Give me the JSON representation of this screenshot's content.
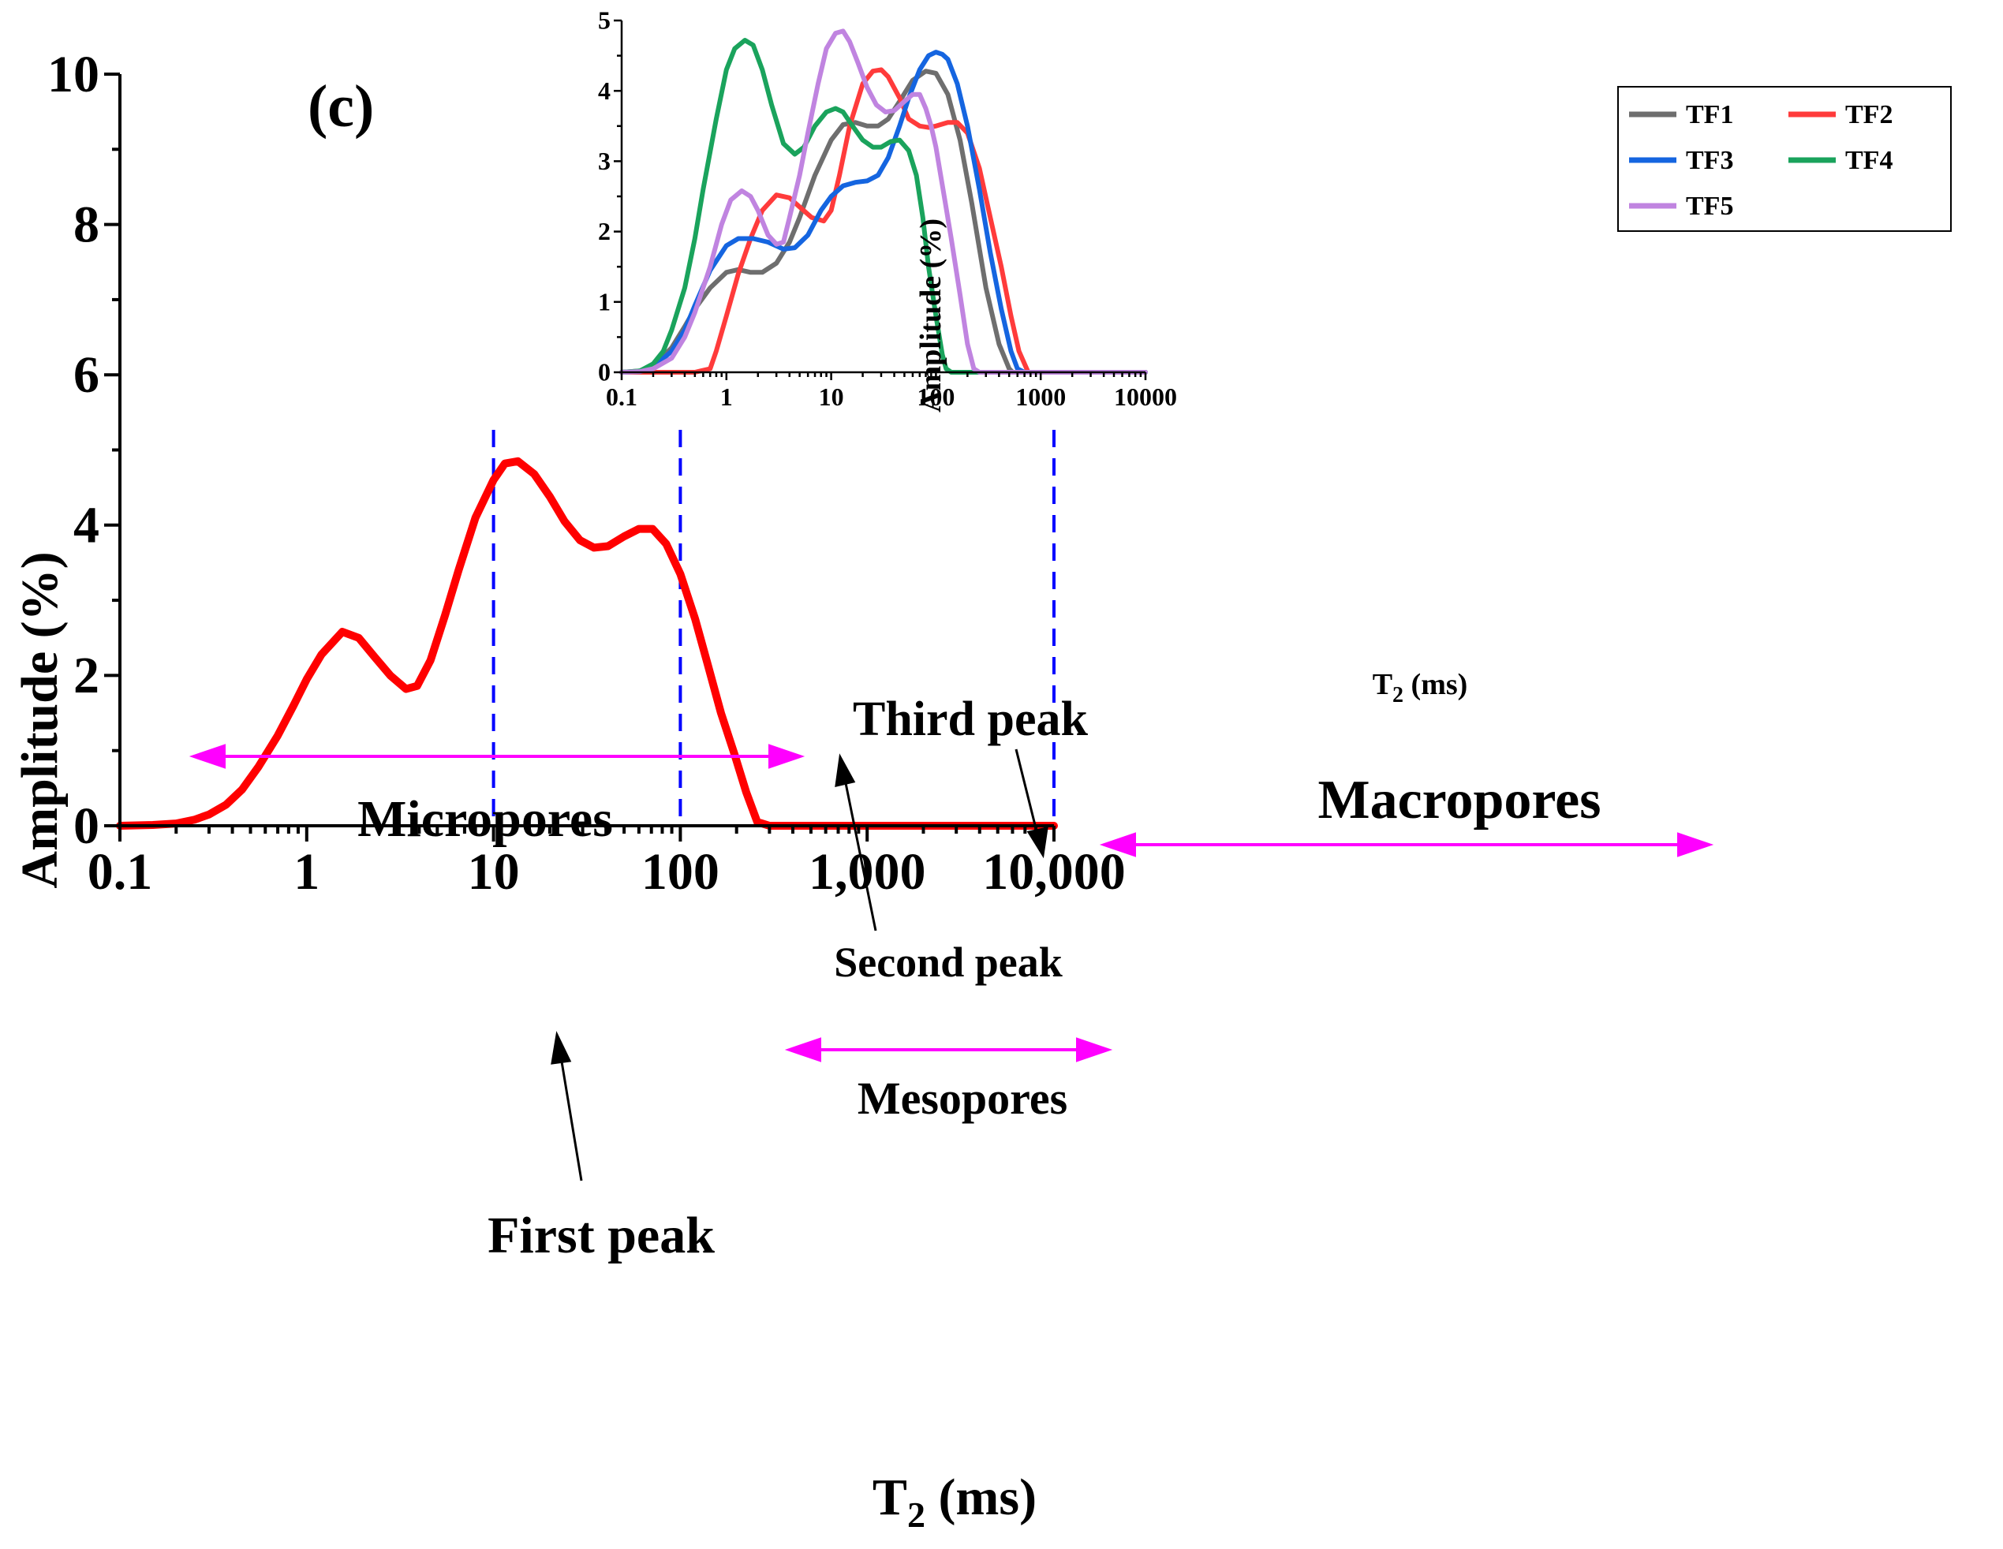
{
  "chart_data": [
    {
      "type": "line",
      "panel_label": "(c)",
      "xscale": "log",
      "xlim": [
        0.1,
        10000
      ],
      "ylim": [
        0,
        10
      ],
      "xlabel_main": "T",
      "xlabel_sub": "2",
      "xlabel_unit": " (ms)",
      "ylabel": "Amplitude (%)",
      "xticks": [
        0.1,
        1,
        10,
        100,
        1000,
        10000
      ],
      "xtick_labels": [
        "0.1",
        "1",
        "10",
        "100",
        "1,000",
        "10,000"
      ],
      "yticks": [
        0,
        2,
        4,
        6,
        8,
        10
      ],
      "ytick_labels": [
        "0",
        "2",
        "4",
        "6",
        "8",
        "10"
      ],
      "series": [
        {
          "name": "TF5",
          "color": "#ff0000",
          "x": [
            0.1,
            0.15,
            0.2,
            0.25,
            0.3,
            0.37,
            0.45,
            0.55,
            0.7,
            0.85,
            1.0,
            1.2,
            1.55,
            1.9,
            2.3,
            2.8,
            3.4,
            3.9,
            4.6,
            5.5,
            6.5,
            8.0,
            10.0,
            11.5,
            13.5,
            16.5,
            20.0,
            24.0,
            29.0,
            34.5,
            41.0,
            50.0,
            60.0,
            71.0,
            84.0,
            100.0,
            120.0,
            140.0,
            165.0,
            195.0,
            225.0,
            258.0,
            300.0,
            500.0,
            1000.0,
            5000.0,
            10000.0
          ],
          "y": [
            0,
            0.01,
            0.03,
            0.08,
            0.15,
            0.28,
            0.48,
            0.78,
            1.2,
            1.6,
            1.95,
            2.28,
            2.58,
            2.5,
            2.25,
            2.0,
            1.82,
            1.86,
            2.2,
            2.8,
            3.4,
            4.1,
            4.6,
            4.82,
            4.85,
            4.68,
            4.38,
            4.05,
            3.8,
            3.7,
            3.72,
            3.85,
            3.95,
            3.95,
            3.75,
            3.35,
            2.75,
            2.15,
            1.5,
            0.95,
            0.45,
            0.05,
            0,
            0,
            0,
            0,
            0
          ]
        }
      ],
      "annotations": {
        "micropores": "Micropores",
        "mesopores": "Mesopores",
        "macropores": "Macropores",
        "first_peak": "First peak",
        "second_peak": "Second peak",
        "third_peak": "Third peak"
      },
      "boundaries": [
        10,
        100,
        10000
      ],
      "accent_dashed": "#0000ff",
      "accent_range": "#ff00ff"
    },
    {
      "type": "line",
      "role": "inset",
      "xscale": "log",
      "xlim": [
        0.1,
        10000
      ],
      "ylim": [
        0,
        5
      ],
      "xlabel_main": "T",
      "xlabel_sub": "2",
      "xlabel_unit": " (ms)",
      "ylabel": "Amplitude (%)",
      "xticks": [
        0.1,
        1,
        10,
        100,
        1000,
        10000
      ],
      "xtick_labels": [
        "0.1",
        "1",
        "10",
        "100",
        "1000",
        "10000"
      ],
      "yticks": [
        0,
        1,
        2,
        3,
        4,
        5
      ],
      "ytick_labels": [
        "0",
        "1",
        "2",
        "3",
        "4",
        "5"
      ],
      "series": [
        {
          "name": "TF1",
          "color": "#6e6e6e",
          "x": [
            0.1,
            0.15,
            0.2,
            0.3,
            0.4,
            0.5,
            0.7,
            1.0,
            1.3,
            1.7,
            2.2,
            3.0,
            4.0,
            5.0,
            7.0,
            10.0,
            13.0,
            17.0,
            22.0,
            28.0,
            35.0,
            45.0,
            60.0,
            80.0,
            100.0,
            130.0,
            170.0,
            220.0,
            300.0,
            400.0,
            500.0,
            540.0,
            600.0,
            1000.0,
            10000.0
          ],
          "y": [
            0,
            0.02,
            0.08,
            0.35,
            0.65,
            0.9,
            1.2,
            1.42,
            1.46,
            1.42,
            1.42,
            1.55,
            1.85,
            2.2,
            2.8,
            3.3,
            3.52,
            3.55,
            3.5,
            3.5,
            3.6,
            3.85,
            4.15,
            4.28,
            4.25,
            3.95,
            3.3,
            2.4,
            1.2,
            0.4,
            0.05,
            0,
            0,
            0,
            0
          ]
        },
        {
          "name": "TF2",
          "color": "#ff3b3b",
          "x": [
            0.1,
            0.5,
            0.7,
            0.8,
            1.0,
            1.3,
            1.7,
            2.2,
            3.0,
            4.0,
            5.0,
            6.5,
            8.5,
            10.0,
            12.0,
            15.0,
            20.0,
            25.0,
            30.0,
            35.0,
            45.0,
            55.0,
            70.0,
            85.0,
            100.0,
            130.0,
            160.0,
            200.0,
            260.0,
            330.0,
            420.0,
            520.0,
            620.0,
            760.0,
            1000.0,
            10000.0
          ],
          "y": [
            0,
            0,
            0.05,
            0.3,
            0.8,
            1.4,
            1.9,
            2.3,
            2.52,
            2.48,
            2.35,
            2.2,
            2.15,
            2.3,
            2.8,
            3.5,
            4.1,
            4.28,
            4.3,
            4.2,
            3.9,
            3.6,
            3.5,
            3.48,
            3.5,
            3.55,
            3.55,
            3.4,
            2.9,
            2.2,
            1.5,
            0.8,
            0.3,
            0,
            0,
            0
          ]
        },
        {
          "name": "TF3",
          "color": "#1565e0",
          "x": [
            0.1,
            0.15,
            0.2,
            0.3,
            0.4,
            0.5,
            0.7,
            1.0,
            1.3,
            1.8,
            2.5,
            3.5,
            4.5,
            6.0,
            8.0,
            10.0,
            13.0,
            17.0,
            22.0,
            28.0,
            35.0,
            45.0,
            55.0,
            70.0,
            85.0,
            100.0,
            115.0,
            130.0,
            160.0,
            200.0,
            260.0,
            330.0,
            420.0,
            520.0,
            600.0,
            700.0,
            1000.0,
            10000.0
          ],
          "y": [
            0,
            0.01,
            0.07,
            0.3,
            0.6,
            0.95,
            1.45,
            1.8,
            1.9,
            1.9,
            1.85,
            1.75,
            1.77,
            1.95,
            2.3,
            2.5,
            2.65,
            2.7,
            2.72,
            2.8,
            3.05,
            3.5,
            3.9,
            4.3,
            4.5,
            4.55,
            4.52,
            4.45,
            4.1,
            3.5,
            2.6,
            1.7,
            0.9,
            0.3,
            0.05,
            0,
            0,
            0
          ]
        },
        {
          "name": "TF4",
          "color": "#1aa35c",
          "x": [
            0.1,
            0.15,
            0.2,
            0.25,
            0.3,
            0.4,
            0.5,
            0.6,
            0.8,
            1.0,
            1.2,
            1.5,
            1.8,
            2.2,
            2.7,
            3.5,
            4.5,
            5.5,
            7.0,
            9.0,
            11.0,
            13.0,
            16.0,
            20.0,
            25.0,
            30.0,
            37.0,
            45.0,
            55.0,
            65.0,
            75.0,
            85.0,
            100.0,
            115.0,
            125.0,
            140.0,
            200.0,
            1000.0,
            10000.0
          ],
          "y": [
            0,
            0.02,
            0.12,
            0.3,
            0.6,
            1.2,
            1.9,
            2.6,
            3.6,
            4.3,
            4.6,
            4.72,
            4.65,
            4.3,
            3.8,
            3.25,
            3.1,
            3.2,
            3.5,
            3.7,
            3.75,
            3.7,
            3.5,
            3.3,
            3.2,
            3.2,
            3.28,
            3.3,
            3.15,
            2.8,
            2.2,
            1.5,
            0.8,
            0.25,
            0.05,
            0,
            0,
            0,
            0
          ]
        },
        {
          "name": "TF5",
          "color": "#c084e0",
          "x": [
            0.1,
            0.15,
            0.2,
            0.3,
            0.4,
            0.5,
            0.7,
            0.9,
            1.1,
            1.4,
            1.7,
            2.0,
            2.5,
            3.0,
            3.5,
            4.0,
            5.0,
            6.0,
            7.5,
            9.0,
            11.0,
            13.0,
            15.0,
            18.0,
            22.0,
            27.0,
            33.0,
            40.0,
            50.0,
            60.0,
            70.0,
            80.0,
            90.0,
            100.0,
            120.0,
            140.0,
            170.0,
            200.0,
            230.0,
            260.0,
            1000.0,
            10000.0
          ],
          "y": [
            0,
            0.01,
            0.05,
            0.2,
            0.5,
            0.85,
            1.5,
            2.1,
            2.45,
            2.58,
            2.5,
            2.3,
            1.95,
            1.82,
            1.85,
            2.2,
            2.8,
            3.4,
            4.1,
            4.6,
            4.82,
            4.85,
            4.7,
            4.4,
            4.05,
            3.8,
            3.7,
            3.72,
            3.85,
            3.95,
            3.95,
            3.75,
            3.5,
            3.2,
            2.5,
            1.9,
            1.1,
            0.4,
            0.05,
            0,
            0,
            0
          ]
        }
      ],
      "legend": [
        "TF1",
        "TF2",
        "TF3",
        "TF4",
        "TF5"
      ],
      "legend_position": "top-right"
    }
  ]
}
